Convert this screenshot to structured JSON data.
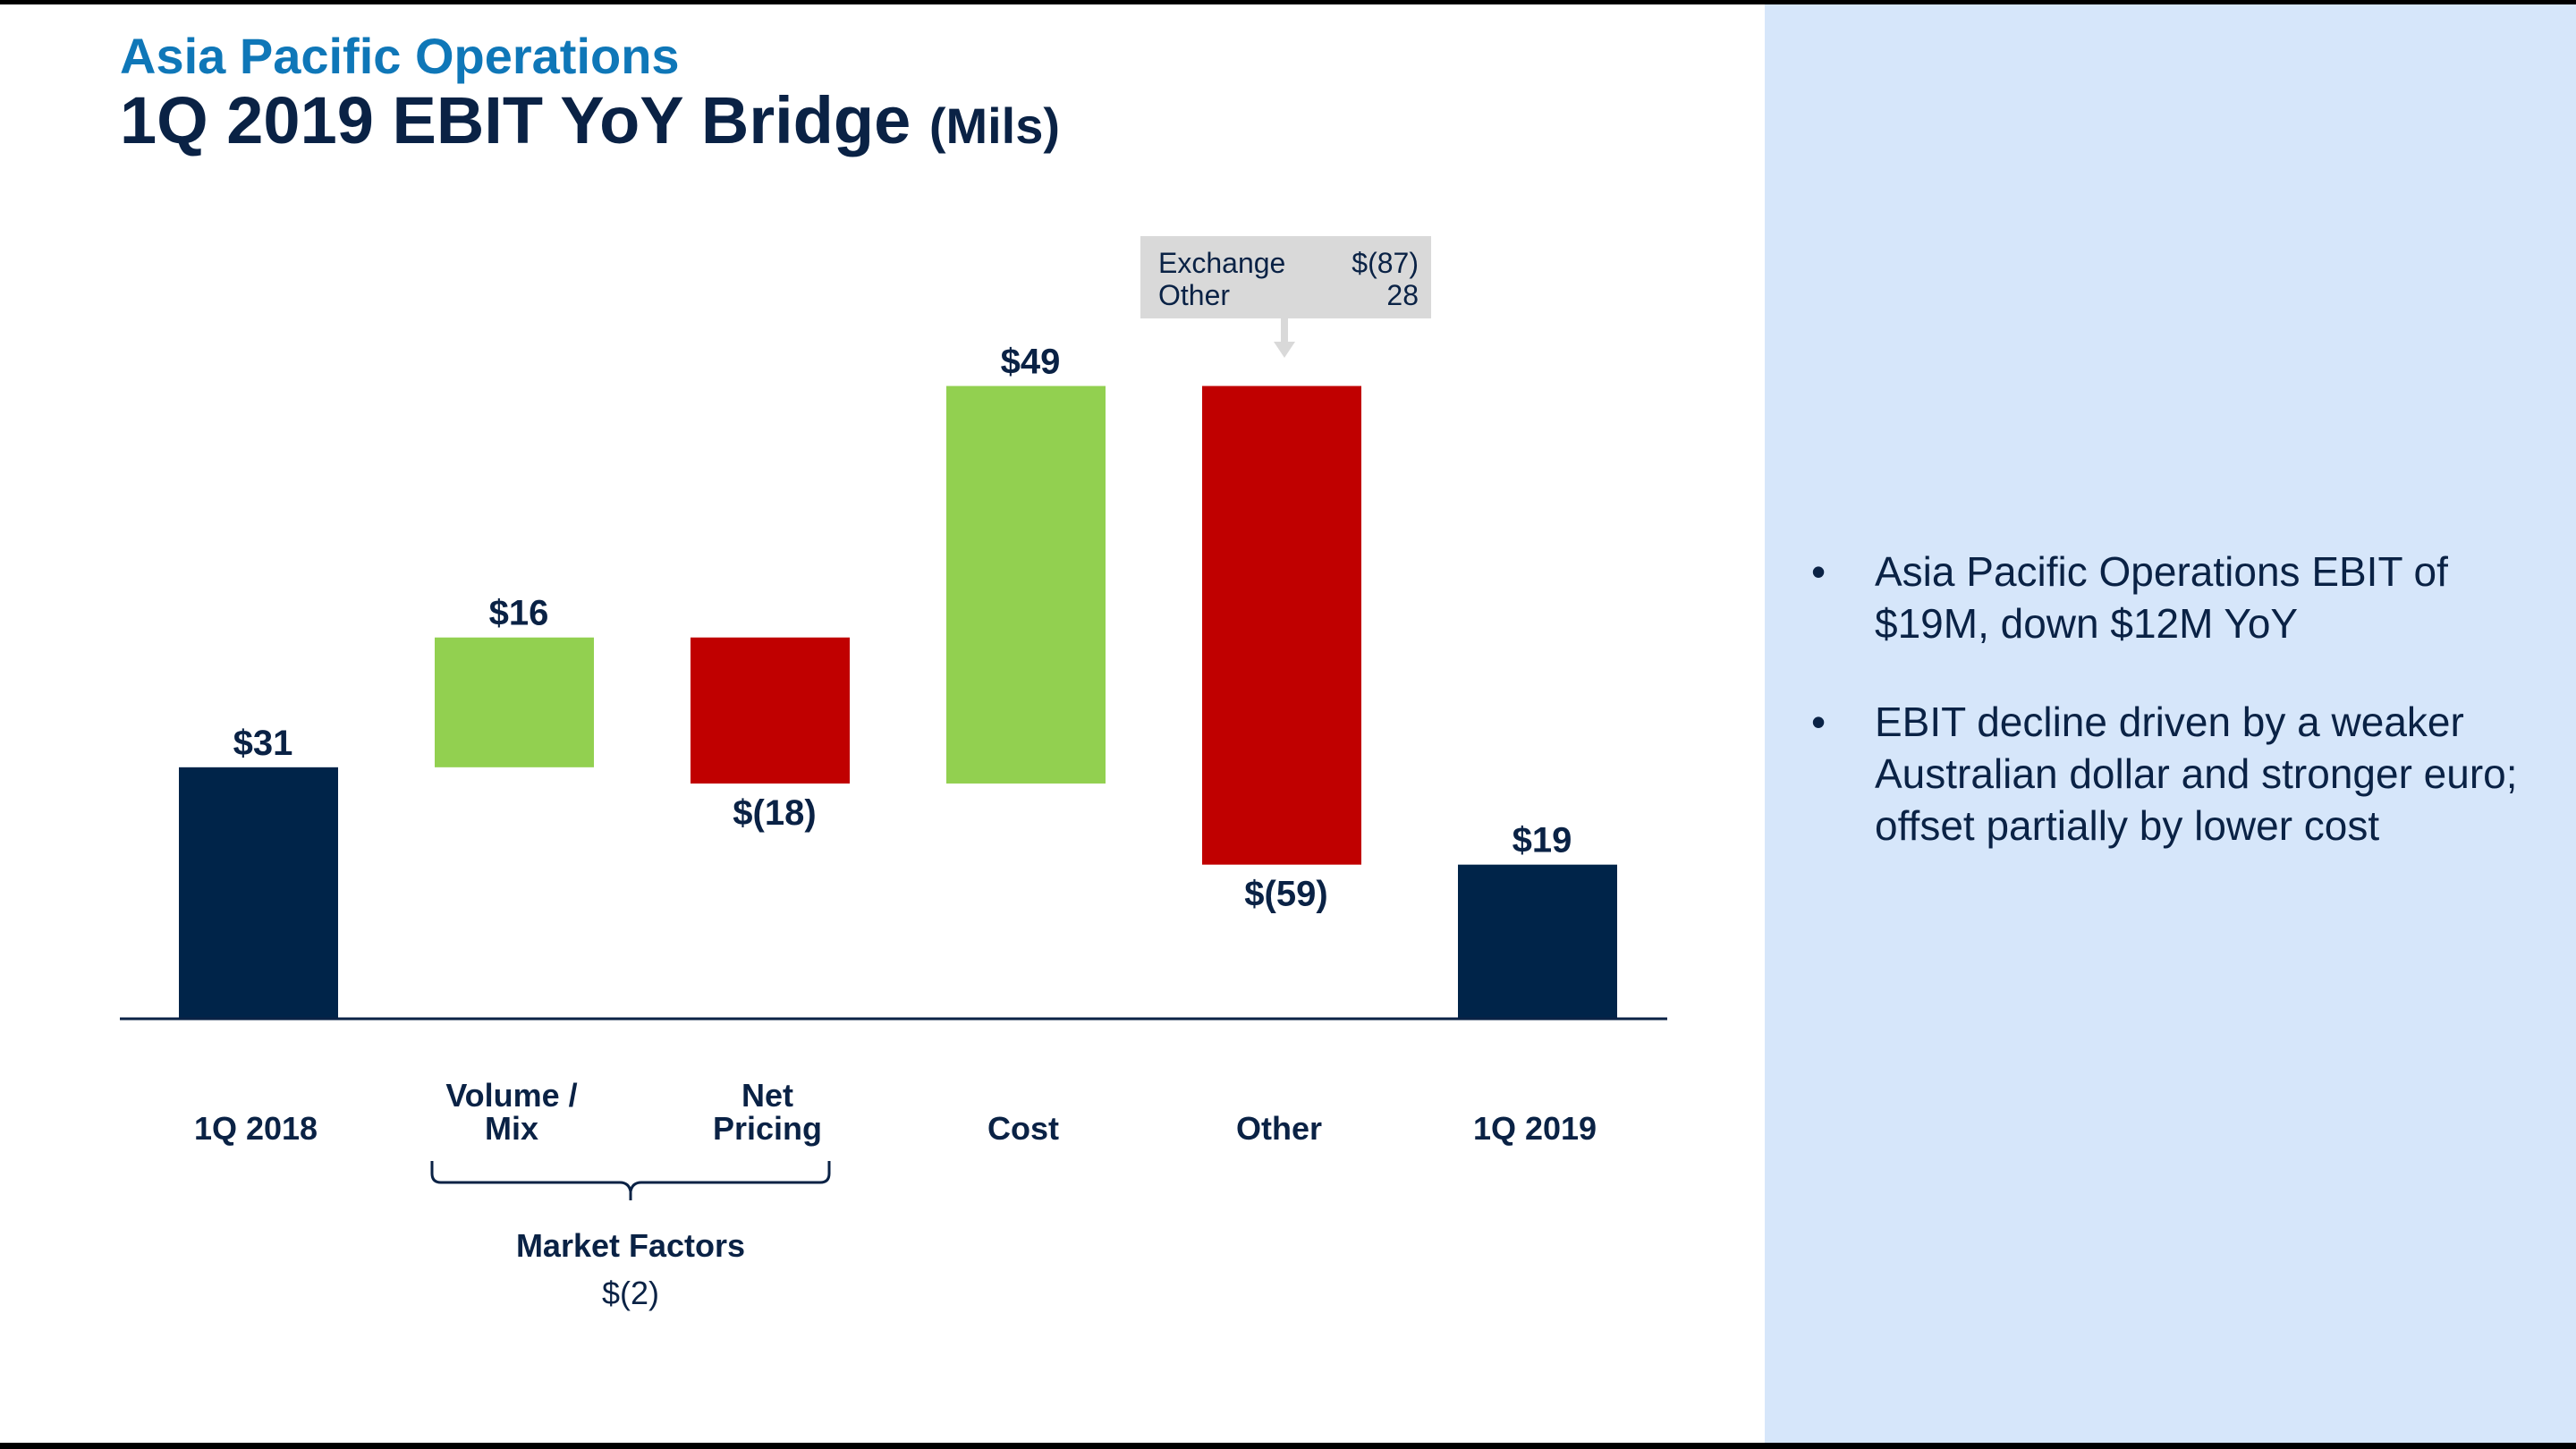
{
  "header": {
    "subtitle": "Asia Pacific Operations",
    "title": "1Q 2019 EBIT YoY Bridge",
    "unit": "(Mils)"
  },
  "colors": {
    "total": "#002449",
    "increase": "#92d050",
    "decrease": "#c00000",
    "title_blue": "#0f77b8",
    "panel": "#d6e6fa"
  },
  "chart_data": {
    "type": "waterfall",
    "title": "1Q 2019 EBIT YoY Bridge (Mils)",
    "categories": [
      [
        "1Q 2018"
      ],
      [
        "Volume /",
        "Mix"
      ],
      [
        "Net",
        "Pricing"
      ],
      [
        "Cost"
      ],
      [
        "Other"
      ],
      [
        "1Q 2019"
      ]
    ],
    "values": [
      31,
      16,
      -18,
      49,
      -59,
      19
    ],
    "kinds": [
      "total",
      "increase",
      "decrease",
      "increase",
      "decrease",
      "total"
    ],
    "data_labels": [
      "$31",
      "$16",
      "$(18)",
      "$49",
      "$(59)",
      "$19"
    ],
    "ylim": [
      0,
      80
    ],
    "group": {
      "label": "Market Factors",
      "value": "$(2)",
      "members": [
        1,
        2
      ]
    },
    "callout": {
      "target": 4,
      "rows": [
        {
          "label": "Exchange",
          "value": "$(87)"
        },
        {
          "label": "Other",
          "value": "28"
        }
      ]
    }
  },
  "bullets": [
    "Asia Pacific Operations EBIT of $19M, down $12M YoY",
    "EBIT decline driven by a weaker Australian dollar and stronger euro; offset partially by lower cost"
  ],
  "bullet_char": "•"
}
